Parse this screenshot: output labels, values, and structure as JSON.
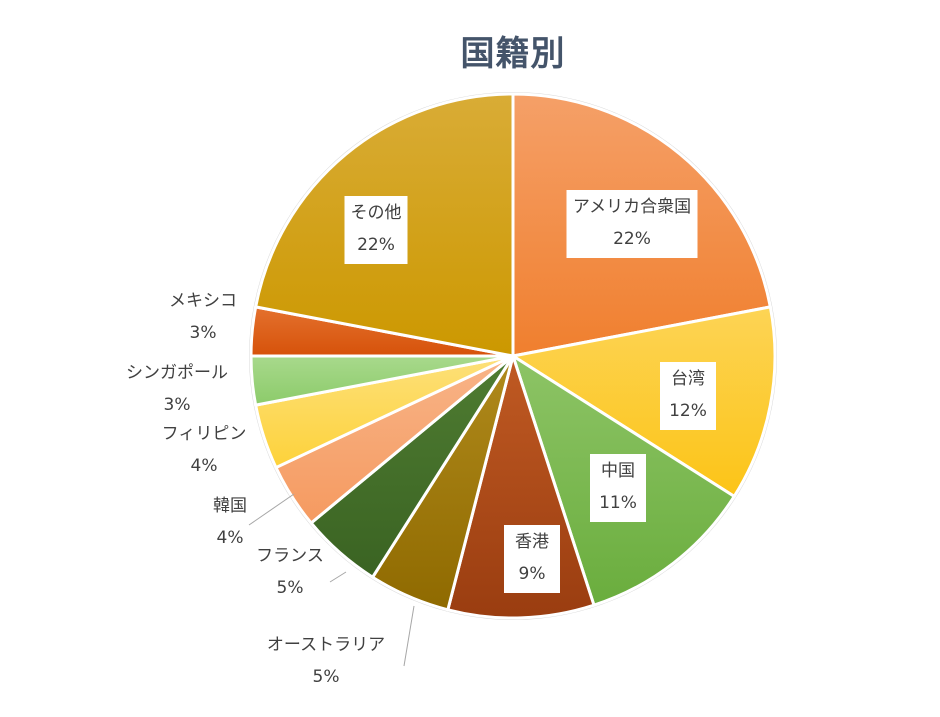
{
  "chart_data": {
    "type": "pie",
    "title": "国籍別",
    "slices": [
      {
        "label": "アメリカ合衆国",
        "value": 22,
        "value_label": "22%",
        "color": "#f07f2e",
        "color_light": "#f5a068"
      },
      {
        "label": "台湾",
        "value": 12,
        "value_label": "12%",
        "color": "#fcc417",
        "color_light": "#fdd455"
      },
      {
        "label": "中国",
        "value": 11,
        "value_label": "11%",
        "color": "#6aad3d",
        "color_light": "#8dc466"
      },
      {
        "label": "香港",
        "value": 9,
        "value_label": "9%",
        "color": "#9a3d10",
        "color_light": "#c05a23"
      },
      {
        "label": "オーストラリア",
        "value": 5,
        "value_label": "5%",
        "color": "#8f6a00",
        "color_light": "#b08a1c"
      },
      {
        "label": "フランス",
        "value": 5,
        "value_label": "5%",
        "color": "#3a6322",
        "color_light": "#4f7c32"
      },
      {
        "label": "韓国",
        "value": 4,
        "value_label": "4%",
        "color": "#f59a60",
        "color_light": "#f8b488"
      },
      {
        "label": "フィリピン",
        "value": 4,
        "value_label": "4%",
        "color": "#fdd23a",
        "color_light": "#fde07a"
      },
      {
        "label": "シンガポール",
        "value": 3,
        "value_label": "3%",
        "color": "#8ccb6a",
        "color_light": "#a8d98c"
      },
      {
        "label": "メキシコ",
        "value": 3,
        "value_label": "3%",
        "color": "#d6520a",
        "color_light": "#e4712e"
      },
      {
        "label": "その他",
        "value": 22,
        "value_label": "22%",
        "color": "#cc9800",
        "color_light": "#d9ac36"
      }
    ]
  }
}
